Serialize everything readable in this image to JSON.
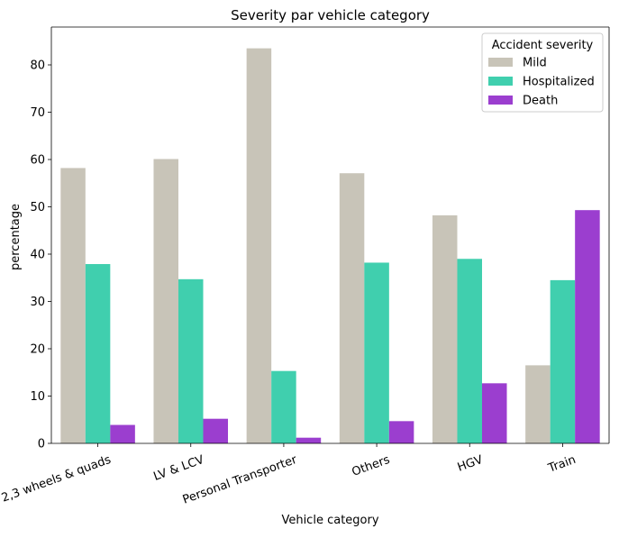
{
  "chart_data": {
    "type": "bar",
    "title": "Severity par vehicle category",
    "xlabel": "Vehicle category",
    "ylabel": "percentage",
    "ylim": [
      0,
      88
    ],
    "yticks": [
      0,
      10,
      20,
      30,
      40,
      50,
      60,
      70,
      80
    ],
    "categories": [
      "2,3 wheels & quads",
      "LV & LCV",
      "Personal Transporter",
      "Others",
      "HGV",
      "Train"
    ],
    "legend": {
      "title": "Accident severity",
      "placement": "top-right"
    },
    "grid": false,
    "series": [
      {
        "name": "Mild",
        "color": "#c8c4b8",
        "values": [
          58.2,
          60.1,
          83.5,
          57.1,
          48.2,
          16.5
        ]
      },
      {
        "name": "Hospitalized",
        "color": "#40cfae",
        "values": [
          37.9,
          34.7,
          15.3,
          38.2,
          39.0,
          34.5
        ]
      },
      {
        "name": "Death",
        "color": "#9b3ecf",
        "values": [
          3.9,
          5.2,
          1.2,
          4.7,
          12.7,
          49.3
        ]
      }
    ]
  }
}
